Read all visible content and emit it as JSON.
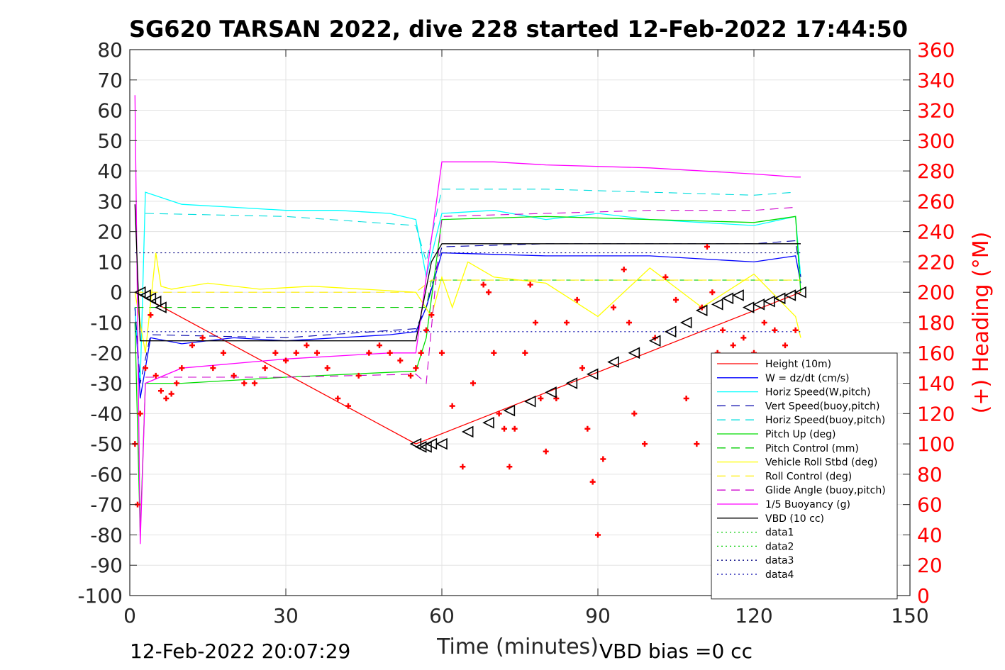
{
  "chart_data": {
    "type": "line",
    "title": "SG620 TARSAN 2022, dive 228 started 12-Feb-2022 17:44:50",
    "xlabel": "Time (minutes)",
    "ylabel_right": "(+) Heading (°M)",
    "xlim": [
      0,
      150
    ],
    "ylim": [
      -100,
      80
    ],
    "ylim_right": [
      0,
      360
    ],
    "x_ticks": [
      "0",
      "30",
      "60",
      "90",
      "120",
      "150"
    ],
    "y_ticks": [
      "80",
      "70",
      "60",
      "50",
      "40",
      "30",
      "20",
      "10",
      "0",
      "-10",
      "-20",
      "-30",
      "-40",
      "-50",
      "-60",
      "-70",
      "-80",
      "-90",
      "-100"
    ],
    "y_right_ticks": [
      "360",
      "340",
      "320",
      "300",
      "280",
      "260",
      "240",
      "220",
      "200",
      "180",
      "160",
      "140",
      "120",
      "100",
      "80",
      "60",
      "40",
      "20",
      "0"
    ],
    "grid": true,
    "legend_position": "bottom-right",
    "footer_left": "12-Feb-2022 20:07:29",
    "footer_right": "VBD bias =0 cc",
    "series": [
      {
        "name": "Height (10m)",
        "color": "#ff0000",
        "style": "solid",
        "x": [
          1,
          55,
          129
        ],
        "values": [
          0,
          -50,
          0
        ]
      },
      {
        "name": "W = dz/dt (cm/s)",
        "color": "#0000ff",
        "style": "solid",
        "x": [
          1,
          2,
          4,
          10,
          20,
          30,
          40,
          50,
          55,
          57,
          60,
          80,
          100,
          120,
          128,
          129
        ],
        "values": [
          -5,
          -35,
          -15,
          -17,
          -15,
          -16,
          -15,
          -14,
          -13,
          -5,
          13,
          12,
          12,
          10,
          12,
          3
        ]
      },
      {
        "name": "Horiz Speed(W,pitch)",
        "color": "#00ffff",
        "style": "solid",
        "x": [
          1,
          2,
          3,
          10,
          20,
          30,
          40,
          50,
          55,
          57,
          60,
          70,
          80,
          90,
          100,
          110,
          120,
          128,
          129
        ],
        "values": [
          -5,
          -30,
          33,
          29,
          28,
          27,
          27,
          26,
          24,
          5,
          26,
          27,
          24,
          26,
          24,
          23,
          22,
          25,
          5
        ]
      },
      {
        "name": "Vert Speed(buoy,pitch)",
        "color": "#0000aa",
        "style": "dash",
        "x": [
          1,
          2,
          4,
          30,
          55,
          57,
          60,
          80,
          100,
          120,
          128,
          129
        ],
        "values": [
          -5,
          -30,
          -14,
          -15,
          -12,
          -5,
          15,
          16,
          16,
          16,
          17,
          5
        ]
      },
      {
        "name": "Horiz Speed(buoy,pitch)",
        "color": "#00dddd",
        "style": "dash",
        "x": [
          3,
          30,
          55,
          57,
          60,
          80,
          100,
          120,
          128
        ],
        "values": [
          26,
          25,
          22,
          10,
          34,
          34,
          33,
          32,
          33
        ]
      },
      {
        "name": "Pitch Up (deg)",
        "color": "#00dd00",
        "style": "solid",
        "x": [
          1,
          2,
          3,
          10,
          30,
          55,
          57,
          60,
          80,
          100,
          120,
          128,
          129
        ],
        "values": [
          -10,
          -80,
          -30,
          -30,
          -28,
          -26,
          -15,
          24,
          25,
          24,
          23,
          25,
          0
        ]
      },
      {
        "name": "Pitch Control (mm)",
        "color": "#00cc00",
        "style": "dash",
        "x": [
          1,
          57,
          58,
          129
        ],
        "values": [
          -5,
          -5,
          4,
          4
        ]
      },
      {
        "name": "Vehicle Roll Stbd (deg)",
        "color": "#ffff00",
        "style": "solid",
        "x": [
          1,
          3,
          5,
          6,
          8,
          15,
          25,
          35,
          45,
          55,
          58,
          60,
          62,
          65,
          70,
          80,
          90,
          100,
          110,
          120,
          128,
          129
        ],
        "values": [
          0,
          -20,
          13,
          2,
          1,
          3,
          1,
          2,
          1,
          0,
          -8,
          5,
          -5,
          10,
          5,
          3,
          -8,
          8,
          -5,
          6,
          -8,
          -15
        ]
      },
      {
        "name": "Roll Control (deg)",
        "color": "#ffee00",
        "style": "dash",
        "x": [
          1,
          55,
          58,
          129
        ],
        "values": [
          0,
          0,
          4,
          4
        ]
      },
      {
        "name": "Glide Angle (buoy,pitch)",
        "color": "#cc00cc",
        "style": "dash",
        "x": [
          3,
          30,
          55,
          57,
          60,
          80,
          100,
          120,
          128
        ],
        "values": [
          -28,
          -28,
          -27,
          -30,
          25,
          26,
          27,
          27,
          28
        ]
      },
      {
        "name": "1/5 Buoyancy (g)",
        "color": "#ff00ff",
        "style": "solid",
        "x": [
          1,
          2,
          3,
          10,
          30,
          50,
          55,
          57,
          60,
          70,
          80,
          100,
          120,
          128,
          129
        ],
        "values": [
          65,
          -83,
          -30,
          -25,
          -22,
          -20,
          -20,
          5,
          43,
          43,
          42,
          41,
          39,
          38,
          38
        ]
      },
      {
        "name": "VBD (10 cc)",
        "color": "#000000",
        "style": "solid",
        "x": [
          1,
          2,
          55,
          58,
          60,
          129
        ],
        "values": [
          29,
          -16,
          -16,
          10,
          16,
          16
        ]
      },
      {
        "name": "data1",
        "color": "#00cc00",
        "style": "dot",
        "x": [],
        "values": []
      },
      {
        "name": "data2",
        "color": "#00cc00",
        "style": "dot",
        "x": [],
        "values": []
      },
      {
        "name": "data3",
        "color": "#000080",
        "style": "dot",
        "x": [
          1,
          129
        ],
        "values": [
          13,
          13
        ]
      },
      {
        "name": "data4",
        "color": "#0000aa",
        "style": "dot",
        "x": [
          1,
          129
        ],
        "values": [
          -13,
          -13
        ]
      }
    ],
    "heading_markers": {
      "axis": "right",
      "color": "#ff0000",
      "marker": "+",
      "x": [
        1,
        1.5,
        2,
        3,
        4,
        5,
        6,
        7,
        8,
        9,
        10,
        12,
        14,
        16,
        18,
        20,
        22,
        24,
        26,
        28,
        30,
        32,
        34,
        36,
        38,
        40,
        42,
        44,
        46,
        48,
        50,
        52,
        54,
        55,
        56,
        57,
        58,
        60,
        62,
        64,
        66,
        68,
        69,
        70,
        71,
        72,
        73,
        74,
        76,
        77,
        78,
        79,
        80,
        82,
        84,
        86,
        87,
        88,
        89,
        90,
        91,
        93,
        95,
        96,
        97,
        99,
        101,
        103,
        105,
        107,
        109,
        110,
        111,
        112,
        113,
        114,
        116,
        118,
        120,
        122,
        124,
        126,
        128
      ],
      "values": [
        100,
        60,
        120,
        150,
        185,
        145,
        135,
        130,
        133,
        140,
        150,
        165,
        170,
        150,
        160,
        145,
        140,
        140,
        150,
        160,
        155,
        160,
        165,
        160,
        150,
        130,
        125,
        145,
        160,
        165,
        160,
        155,
        145,
        150,
        160,
        175,
        185,
        160,
        125,
        85,
        140,
        205,
        200,
        160,
        120,
        110,
        85,
        110,
        160,
        205,
        180,
        130,
        95,
        130,
        180,
        195,
        150,
        110,
        75,
        40,
        90,
        190,
        215,
        180,
        120,
        100,
        170,
        210,
        195,
        130,
        100,
        190,
        230,
        200,
        160,
        175,
        165,
        170,
        160,
        180,
        175,
        165,
        175
      ]
    },
    "vbd_markers": {
      "axis": "left",
      "color": "#000000",
      "marker": "triangle",
      "x": [
        2,
        3,
        4,
        5,
        6,
        55,
        56,
        57,
        58,
        60,
        65,
        69,
        73,
        77,
        81,
        85,
        89,
        93,
        97,
        101,
        104,
        107,
        110,
        113,
        115,
        117,
        119,
        121,
        123,
        125,
        127,
        129
      ],
      "values": [
        0,
        -1,
        -2,
        -3,
        -5,
        -50,
        -51,
        -51,
        -50,
        -50,
        -46,
        -43,
        -39,
        -36,
        -33,
        -30,
        -27,
        -23,
        -20,
        -16,
        -13,
        -10,
        -6,
        -4,
        -2,
        -1,
        -5,
        -4,
        -3,
        -2,
        -1,
        0
      ]
    }
  }
}
